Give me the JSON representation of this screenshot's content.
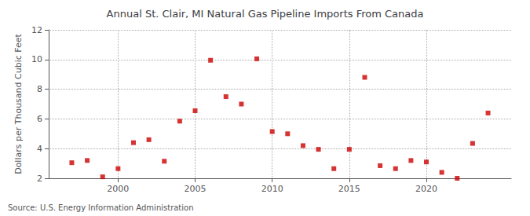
{
  "chart_data": {
    "type": "scatter",
    "title": "Annual St. Clair, MI Natural Gas Pipeline Imports From Canada",
    "ylabel": "Dollars per Thousand Cubic Feet",
    "annotation": "Source: U.S. Energy Information Administration",
    "x": [
      1997,
      1998,
      1999,
      2000,
      2001,
      2002,
      2003,
      2004,
      2005,
      2006,
      2007,
      2008,
      2009,
      2010,
      2011,
      2012,
      2013,
      2014,
      2015,
      2016,
      2017,
      2018,
      2019,
      2020,
      2021,
      2022,
      2023,
      2024
    ],
    "values": [
      3.05,
      3.2,
      2.1,
      2.65,
      4.4,
      4.6,
      3.15,
      5.85,
      6.55,
      9.95,
      7.5,
      7.0,
      10.05,
      5.15,
      5.0,
      4.2,
      3.95,
      2.65,
      3.95,
      8.8,
      2.85,
      2.65,
      3.2,
      3.1,
      2.4,
      2.0,
      4.35,
      6.4
    ],
    "color": "#cc0000",
    "marker": "square",
    "xlim": [
      1995.5,
      2025.5
    ],
    "ylim": [
      2,
      12
    ],
    "xticks": [
      2000,
      2005,
      2010,
      2015,
      2020
    ],
    "yticks": [
      2,
      4,
      6,
      8,
      10,
      12
    ],
    "grid": true
  }
}
